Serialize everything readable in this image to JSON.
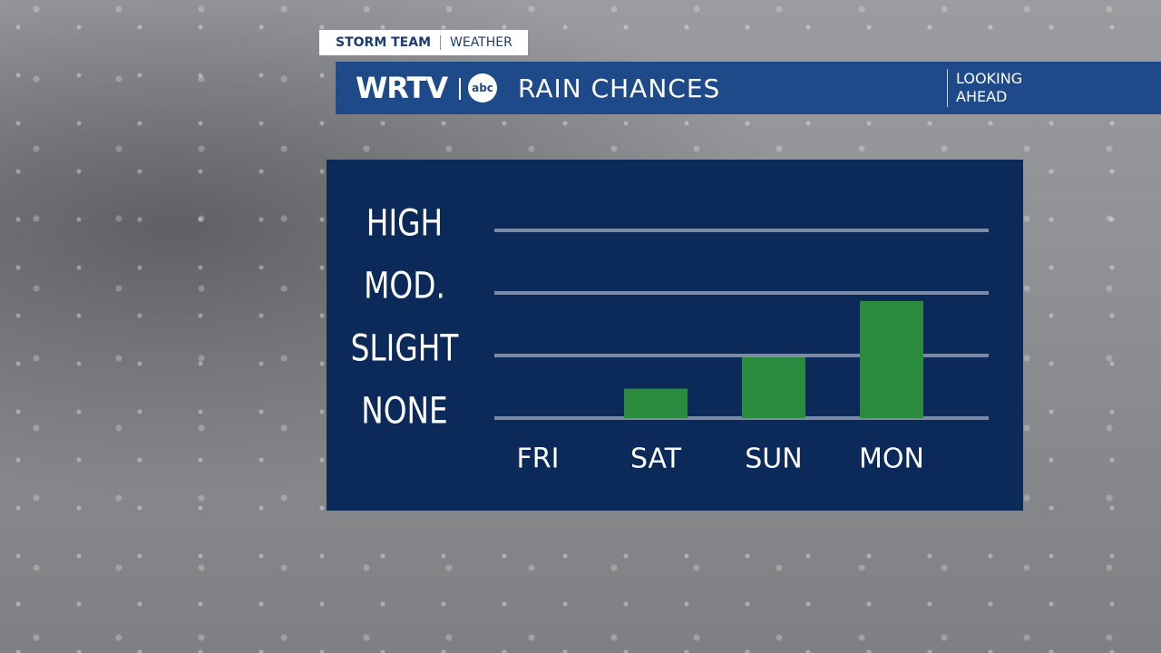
{
  "header": {
    "brand": "STORM TEAM",
    "section": "WEATHER",
    "station": "WRTV",
    "network": "abc",
    "title": "RAIN CHANCES",
    "tag": "LOOKING AHEAD"
  },
  "chart_data": {
    "type": "bar",
    "categories": [
      "FRI",
      "SAT",
      "SUN",
      "MON"
    ],
    "values": [
      0,
      0.5,
      1,
      1.9
    ],
    "color": "#2a8a3e",
    "ylim": [
      0,
      3
    ],
    "yticks": [
      {
        "value": 0,
        "label": "NONE"
      },
      {
        "value": 1,
        "label": "SLIGHT"
      },
      {
        "value": 2,
        "label": "MOD."
      },
      {
        "value": 3,
        "label": "HIGH"
      }
    ],
    "grid": true
  }
}
